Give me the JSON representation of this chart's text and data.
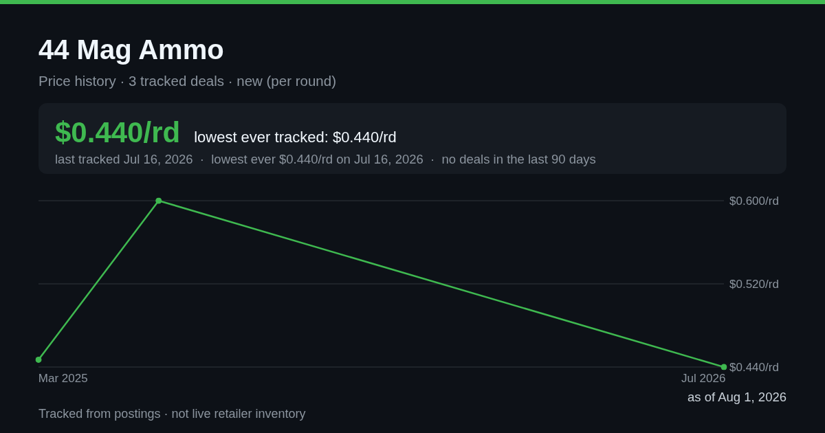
{
  "chart_data": {
    "type": "line",
    "title": "44 Mag Ammo",
    "subtitle": "Price history · 3 tracked deals · new (per round)",
    "x": [
      "2025-03-01",
      "2025-05-28",
      "2026-07-16"
    ],
    "series": [
      {
        "color": "#3fb950",
        "values": [
          0.447,
          0.6,
          0.44
        ]
      }
    ],
    "xlim": [
      "2025-03-01",
      "2026-07-16"
    ],
    "xticks": [
      {
        "value": "2025-03-19",
        "label": "Mar 2025"
      },
      {
        "value": "2026-07-01",
        "label": "Jul 2026"
      }
    ],
    "ylim": [
      0.44,
      0.6
    ],
    "yticks": [
      {
        "value": 0.44,
        "label": "$0.440/rd"
      },
      {
        "value": 0.52,
        "label": "$0.520/rd"
      },
      {
        "value": 0.6,
        "label": "$0.600/rd"
      }
    ],
    "grid": "y",
    "marker": "circle",
    "line_style": "solid",
    "annotations": [
      "$0.440/rd",
      "lowest ever tracked: $0.440/rd",
      "last tracked Jul 16, 2026  ·  lowest ever $0.440/rd on Jul 16, 2026  ·  no deals in the last 90 days",
      "as of Aug 1, 2026",
      "Tracked from postings · not live retailer inventory"
    ]
  }
}
